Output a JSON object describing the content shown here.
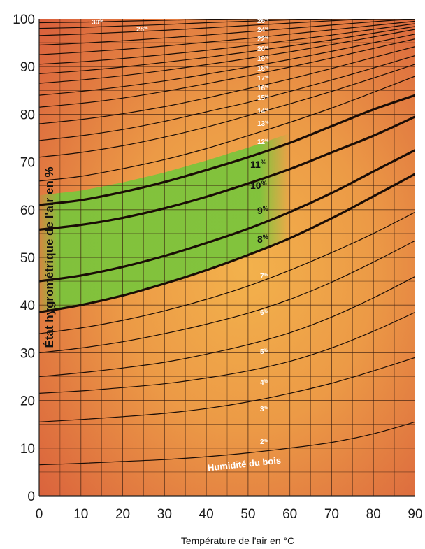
{
  "chart_data": {
    "type": "line",
    "xlabel": "Température de l'air en °C",
    "ylabel": "État hygrométrique de l'air en %",
    "xlim": [
      0,
      90
    ],
    "ylim": [
      0,
      100
    ],
    "xticks": [
      "0",
      "10",
      "20",
      "30",
      "40",
      "50",
      "60",
      "70",
      "80",
      "90"
    ],
    "yticks": [
      "0",
      "10",
      "20",
      "30",
      "40",
      "50",
      "60",
      "70",
      "80",
      "90",
      "100"
    ],
    "grid": true,
    "curve_caption": "Humidité du bois",
    "highlight_range": {
      "from_curve": "8%",
      "to_curve": "11%",
      "x_max": 60,
      "color": "#7cc43c"
    },
    "series": [
      {
        "name": "2%",
        "label": "2",
        "sup": "%",
        "bold": false,
        "x": [
          0,
          10,
          20,
          30,
          40,
          50,
          60,
          70,
          80,
          90
        ],
        "y": [
          6.5,
          6.8,
          7.2,
          7.6,
          8.2,
          9.0,
          10.0,
          11.2,
          13.0,
          15.5
        ]
      },
      {
        "name": "3%",
        "label": "3",
        "sup": "%",
        "bold": false,
        "x": [
          0,
          10,
          20,
          30,
          40,
          50,
          60,
          70,
          80,
          90
        ],
        "y": [
          15.5,
          16.0,
          16.6,
          17.3,
          18.3,
          19.7,
          21.5,
          23.6,
          26.2,
          29.0
        ]
      },
      {
        "name": "4%",
        "label": "4",
        "sup": "%",
        "bold": false,
        "x": [
          0,
          10,
          20,
          30,
          40,
          50,
          60,
          70,
          80,
          90
        ],
        "y": [
          21.5,
          22.0,
          22.7,
          23.5,
          24.7,
          26.2,
          28.2,
          31.0,
          34.5,
          38.5
        ]
      },
      {
        "name": "5%",
        "label": "5",
        "sup": "%",
        "bold": false,
        "x": [
          0,
          10,
          20,
          30,
          40,
          50,
          60,
          70,
          80,
          90
        ],
        "y": [
          25.0,
          25.8,
          26.8,
          28.0,
          29.7,
          31.7,
          34.2,
          37.5,
          41.5,
          46.0
        ]
      },
      {
        "name": "6%",
        "label": "6",
        "sup": "%",
        "bold": false,
        "x": [
          0,
          10,
          20,
          30,
          40,
          50,
          60,
          70,
          80,
          90
        ],
        "y": [
          30.0,
          31.0,
          32.3,
          34.0,
          36.0,
          38.3,
          41.2,
          44.8,
          49.0,
          53.5
        ]
      },
      {
        "name": "7%",
        "label": "7",
        "sup": "%",
        "bold": false,
        "x": [
          0,
          10,
          20,
          30,
          40,
          50,
          60,
          70,
          80,
          90
        ],
        "y": [
          34.0,
          35.2,
          36.8,
          38.8,
          41.2,
          44.0,
          47.3,
          51.0,
          55.0,
          59.5
        ]
      },
      {
        "name": "8%",
        "label": "8",
        "sup": "%",
        "bold": true,
        "x": [
          0,
          10,
          20,
          30,
          40,
          50,
          60,
          70,
          80,
          90
        ],
        "y": [
          38.5,
          40.0,
          42.0,
          44.5,
          47.3,
          50.5,
          54.0,
          58.2,
          62.8,
          67.5
        ]
      },
      {
        "name": "9%",
        "label": "9",
        "sup": "%",
        "bold": true,
        "x": [
          0,
          10,
          20,
          30,
          40,
          50,
          60,
          70,
          80,
          90
        ],
        "y": [
          45.0,
          46.2,
          48.0,
          50.3,
          53.0,
          56.0,
          59.5,
          63.5,
          68.0,
          72.5
        ]
      },
      {
        "name": "10%",
        "label": "10",
        "sup": "%",
        "bold": true,
        "x": [
          0,
          10,
          20,
          30,
          40,
          50,
          60,
          70,
          80,
          90
        ],
        "y": [
          55.8,
          56.8,
          58.3,
          60.3,
          62.7,
          65.5,
          68.5,
          72.0,
          75.5,
          79.5
        ]
      },
      {
        "name": "11%",
        "label": "11",
        "sup": "%",
        "bold": true,
        "x": [
          0,
          10,
          20,
          30,
          40,
          50,
          60,
          70,
          80,
          90
        ],
        "y": [
          61.0,
          62.0,
          63.7,
          65.8,
          68.3,
          71.0,
          74.0,
          77.5,
          81.0,
          84.0
        ]
      },
      {
        "name": "12%",
        "label": "12",
        "sup": "%",
        "bold": false,
        "x": [
          0,
          10,
          20,
          30,
          40,
          50,
          60,
          70,
          80,
          90
        ],
        "y": [
          66.0,
          67.0,
          68.6,
          70.5,
          72.8,
          75.5,
          78.3,
          81.3,
          84.6,
          88.0
        ]
      },
      {
        "name": "13%",
        "label": "13",
        "sup": "%",
        "bold": false,
        "x": [
          0,
          10,
          20,
          30,
          40,
          50,
          60,
          70,
          80,
          90
        ],
        "y": [
          71.0,
          72.0,
          73.4,
          75.2,
          77.3,
          79.7,
          82.2,
          84.8,
          87.6,
          90.5
        ]
      },
      {
        "name": "14%",
        "label": "14",
        "sup": "%",
        "bold": false,
        "x": [
          0,
          10,
          20,
          30,
          40,
          50,
          60,
          70,
          80,
          90
        ],
        "y": [
          74.5,
          75.5,
          76.8,
          78.5,
          80.5,
          82.5,
          84.8,
          87.2,
          89.7,
          92.3
        ]
      },
      {
        "name": "15%",
        "label": "15",
        "sup": "%",
        "bold": false,
        "x": [
          0,
          10,
          20,
          30,
          40,
          50,
          60,
          70,
          80,
          90
        ],
        "y": [
          78.0,
          78.9,
          80.1,
          81.6,
          83.4,
          85.4,
          87.4,
          89.6,
          91.9,
          94.2
        ]
      },
      {
        "name": "16%",
        "label": "16",
        "sup": "%",
        "bold": false,
        "x": [
          0,
          10,
          20,
          30,
          40,
          50,
          60,
          70,
          80,
          90
        ],
        "y": [
          81.5,
          82.3,
          83.4,
          84.8,
          86.4,
          88.1,
          89.9,
          91.8,
          93.8,
          95.8
        ]
      },
      {
        "name": "17%",
        "label": "17",
        "sup": "%",
        "bold": false,
        "x": [
          0,
          10,
          20,
          30,
          40,
          50,
          60,
          70,
          80,
          90
        ],
        "y": [
          84.0,
          84.8,
          85.8,
          87.0,
          88.4,
          89.9,
          91.5,
          93.2,
          95.0,
          96.8
        ]
      },
      {
        "name": "18%",
        "label": "18",
        "sup": "%",
        "bold": false,
        "x": [
          0,
          10,
          20,
          30,
          40,
          50,
          60,
          70,
          80,
          90
        ],
        "y": [
          86.5,
          87.2,
          88.1,
          89.2,
          90.4,
          91.7,
          93.1,
          94.6,
          96.2,
          97.8
        ]
      },
      {
        "name": "19%",
        "label": "19",
        "sup": "%",
        "bold": false,
        "x": [
          0,
          10,
          20,
          30,
          40,
          50,
          60,
          70,
          80,
          90
        ],
        "y": [
          88.5,
          89.1,
          89.9,
          90.9,
          91.9,
          93.1,
          94.3,
          95.6,
          97.0,
          98.4
        ]
      },
      {
        "name": "20%",
        "label": "20",
        "sup": "%",
        "bold": false,
        "x": [
          0,
          10,
          20,
          30,
          40,
          50,
          60,
          70,
          80,
          90
        ],
        "y": [
          90.5,
          91.0,
          91.7,
          92.5,
          93.4,
          94.4,
          95.5,
          96.6,
          97.8,
          99.0
        ]
      },
      {
        "name": "22%",
        "label": "22",
        "sup": "%",
        "bold": false,
        "x": [
          0,
          10,
          20,
          30,
          40,
          50,
          60,
          70,
          80,
          90
        ],
        "y": [
          92.5,
          93.0,
          93.6,
          94.3,
          95.1,
          95.9,
          96.8,
          97.7,
          98.6,
          99.5
        ]
      },
      {
        "name": "24%",
        "label": "24",
        "sup": "%",
        "bold": false,
        "x": [
          0,
          10,
          20,
          30,
          40,
          50,
          60,
          70,
          80,
          90
        ],
        "y": [
          94.5,
          94.9,
          95.4,
          96.0,
          96.6,
          97.3,
          98.0,
          98.7,
          99.4,
          100.0
        ]
      },
      {
        "name": "26%",
        "label": "26",
        "sup": "%",
        "bold": false,
        "x": [
          0,
          10,
          20,
          30,
          40,
          50,
          60,
          70,
          80,
          90
        ],
        "y": [
          96.5,
          96.8,
          97.2,
          97.6,
          98.1,
          98.6,
          99.1,
          99.6,
          100.0,
          100.0
        ]
      },
      {
        "name": "28%",
        "label": "28",
        "sup": "%",
        "bold": false,
        "x": [
          0,
          10,
          20,
          30,
          40,
          50,
          60,
          70,
          80,
          90
        ],
        "y": [
          98.0,
          98.2,
          98.5,
          98.8,
          99.2,
          99.5,
          99.8,
          100.0,
          100.0,
          100.0
        ]
      },
      {
        "name": "30%",
        "label": "30",
        "sup": "%",
        "bold": false,
        "x": [
          0,
          10,
          20,
          30,
          40,
          50,
          60,
          70,
          80,
          90
        ],
        "y": [
          99.2,
          99.3,
          99.5,
          99.7,
          99.9,
          100.0,
          100.0,
          100.0,
          100.0,
          100.0
        ]
      }
    ]
  }
}
